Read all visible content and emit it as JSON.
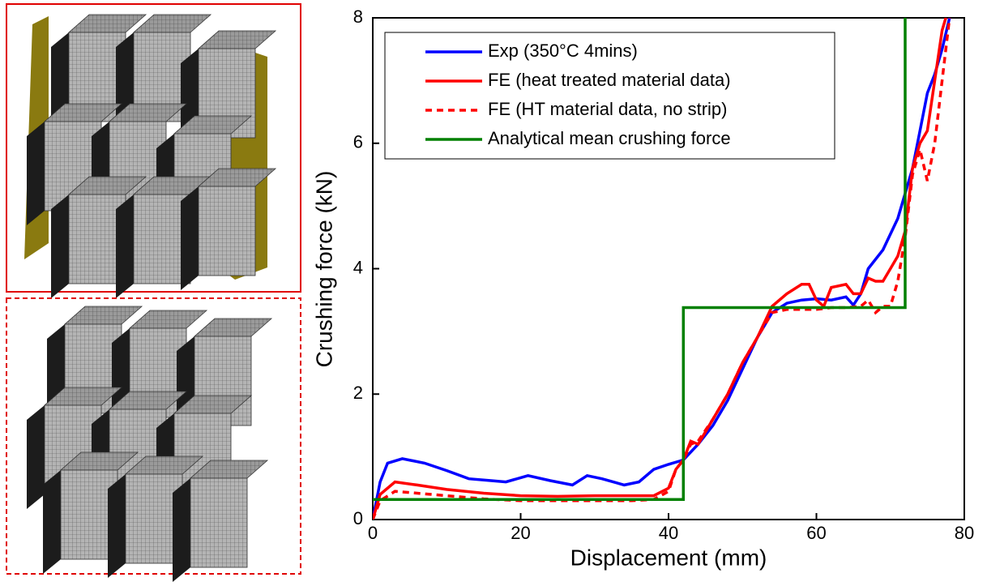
{
  "chart_data": {
    "type": "line",
    "x_label": "Displacement (mm)",
    "y_label": "Crushing force (kN)",
    "xlim": [
      0,
      80
    ],
    "xticks": [
      0,
      20,
      40,
      60,
      80
    ],
    "ylim": [
      0,
      8
    ],
    "yticks": [
      0,
      2,
      4,
      6,
      8
    ],
    "legend": "upper left",
    "series": [
      {
        "name": "Exp (350°C 4mins)",
        "color": "#0000ff",
        "linestyle": "solid",
        "x": [
          0,
          1,
          2,
          4,
          7,
          10,
          13,
          16,
          18,
          21,
          24,
          27,
          29,
          31,
          34,
          36,
          38,
          40,
          42,
          44,
          46,
          48,
          50,
          52,
          54,
          56,
          58,
          60,
          62,
          64,
          65,
          66,
          67,
          69,
          71,
          73,
          74,
          75,
          76,
          77,
          78
        ],
        "values": [
          0,
          0.6,
          0.9,
          0.97,
          0.9,
          0.78,
          0.65,
          0.62,
          0.6,
          0.7,
          0.62,
          0.55,
          0.7,
          0.65,
          0.55,
          0.6,
          0.8,
          0.88,
          0.95,
          1.2,
          1.5,
          1.9,
          2.4,
          2.9,
          3.3,
          3.45,
          3.5,
          3.52,
          3.5,
          3.55,
          3.42,
          3.6,
          4.0,
          4.3,
          4.8,
          5.6,
          6.2,
          6.8,
          7.1,
          7.5,
          8.0
        ]
      },
      {
        "name": "FE (heat treated material data)",
        "color": "#ff0000",
        "linestyle": "solid",
        "x": [
          0,
          1,
          3,
          6,
          10,
          15,
          20,
          25,
          30,
          35,
          38,
          40,
          41,
          42,
          43,
          44,
          46,
          48,
          50,
          52,
          54,
          56,
          58,
          59,
          60,
          61,
          62,
          64,
          65,
          66,
          67,
          68,
          69,
          70,
          71,
          72,
          73,
          74,
          75,
          76,
          77,
          77.5
        ],
        "values": [
          0,
          0.4,
          0.6,
          0.55,
          0.48,
          0.42,
          0.38,
          0.37,
          0.38,
          0.38,
          0.38,
          0.5,
          0.8,
          0.95,
          1.25,
          1.2,
          1.6,
          2.0,
          2.5,
          2.9,
          3.4,
          3.6,
          3.75,
          3.75,
          3.5,
          3.4,
          3.7,
          3.75,
          3.6,
          3.6,
          3.85,
          3.8,
          3.8,
          4.0,
          4.2,
          4.6,
          5.6,
          6.0,
          6.2,
          7.0,
          7.8,
          8.0
        ]
      },
      {
        "name": "FE (HT material data, no strip)",
        "color": "#ff0000",
        "linestyle": "dashed",
        "x": [
          0,
          1,
          3,
          6,
          10,
          15,
          20,
          25,
          30,
          35,
          38,
          40,
          41,
          42,
          43,
          44,
          46,
          48,
          50,
          52,
          54,
          56,
          58,
          60,
          62,
          64,
          66,
          67,
          68,
          69,
          70,
          71,
          72,
          73,
          74,
          75,
          76,
          77,
          78
        ],
        "values": [
          0,
          0.3,
          0.45,
          0.42,
          0.38,
          0.33,
          0.3,
          0.3,
          0.3,
          0.3,
          0.32,
          0.45,
          0.8,
          0.95,
          1.2,
          1.25,
          1.6,
          2.0,
          2.5,
          2.9,
          3.3,
          3.35,
          3.35,
          3.35,
          3.38,
          3.38,
          3.4,
          3.5,
          3.3,
          3.4,
          3.4,
          3.8,
          4.5,
          5.5,
          5.9,
          5.4,
          6.0,
          7.0,
          8.0
        ]
      },
      {
        "name": "Analytical mean crushing force",
        "color": "#008000",
        "linestyle": "solid",
        "x": [
          0,
          42,
          42,
          72,
          72
        ],
        "values": [
          0.32,
          0.32,
          3.38,
          3.38,
          8
        ]
      }
    ]
  }
}
